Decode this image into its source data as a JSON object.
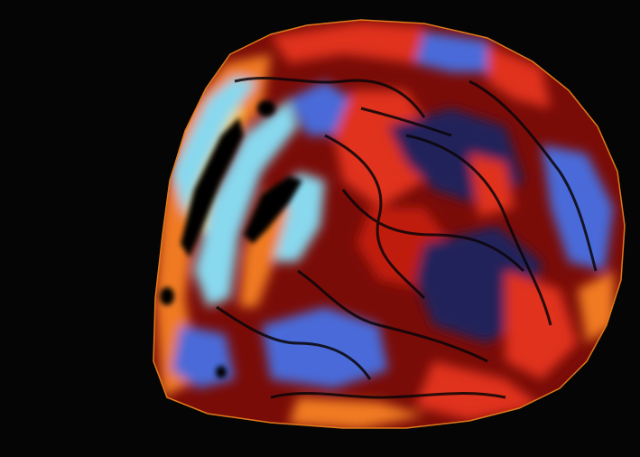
{
  "image": {
    "subject": "pseudocolor map",
    "colors": {
      "background": "#050505",
      "outline": "#e07a1a",
      "deep_red": "#a8100a",
      "red": "#e0301a",
      "orange": "#f07a20",
      "yellow": "#f6d040",
      "light_blue": "#88d8ee",
      "mid_blue": "#4a6ad8",
      "deep_blue": "#24205a",
      "black": "#000000"
    }
  }
}
